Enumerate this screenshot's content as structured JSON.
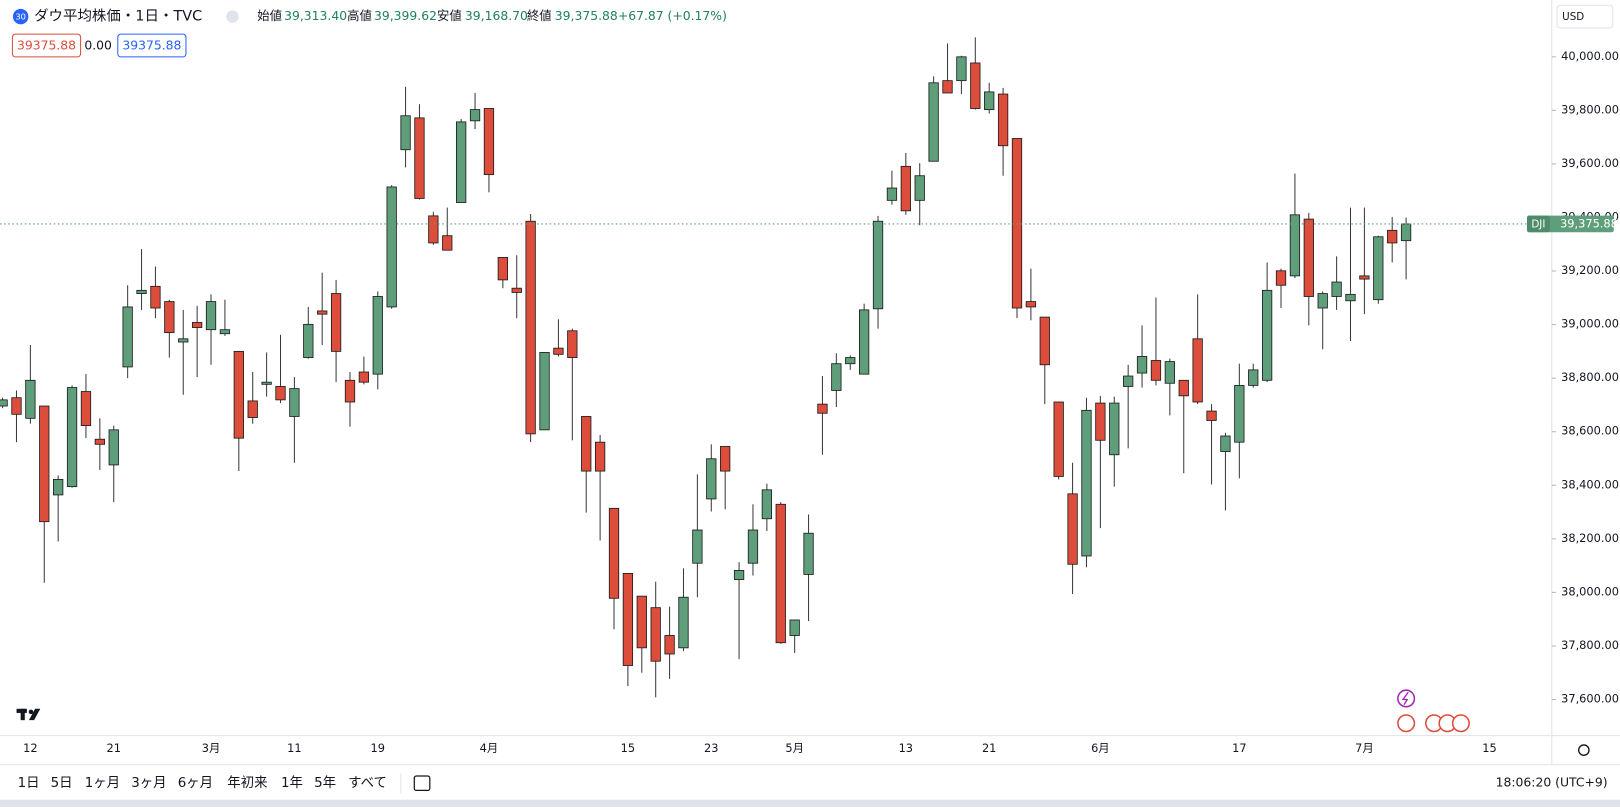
{
  "header": {
    "badge": "30",
    "title": "ダウ平均株価・1日・TVC",
    "ohlc": [
      {
        "label": "始値",
        "value": "39,313.40"
      },
      {
        "label": "高値",
        "value": "39,399.62"
      },
      {
        "label": "安値",
        "value": "39,168.70"
      },
      {
        "label": "終値",
        "value": "39,375.88"
      }
    ],
    "change": "+67.87 (+0.17%)",
    "boxes": [
      "39375.88",
      "0.00",
      "39375.88"
    ],
    "currency": "USD"
  },
  "chart_data": {
    "type": "candlestick",
    "up_color": "#5f9e7b",
    "down_color": "#dc4d3c",
    "open": [
      38696,
      38727,
      38650,
      38696,
      38364,
      38395,
      38750,
      38572,
      38476,
      38842,
      39116,
      39143,
      39086,
      38935,
      39008,
      38981,
      38966,
      38900,
      38715,
      38777,
      38769,
      38657,
      38877,
      39051,
      39116,
      38792,
      38823,
      38815,
      39066,
      39653,
      39772,
      39406,
      39332,
      39456,
      39761,
      39807,
      39251,
      39136,
      39386,
      38607,
      38912,
      38977,
      38657,
      38561,
      38314,
      38071,
      37986,
      37943,
      37839,
      37793,
      38109,
      38349,
      38545,
      38048,
      38109,
      38275,
      38329,
      37839,
      38067,
      38703,
      38754,
      38854,
      38815,
      39059,
      39464,
      39591,
      39464,
      39610,
      39911,
      39911,
      39977,
      39803,
      39861,
      39695,
      39086,
      39028,
      38711,
      38368,
      38136,
      38707,
      38514,
      38769,
      38819,
      38866,
      38781,
      38792,
      38947,
      38677,
      38526,
      38561,
      38773,
      38792,
      39201,
      39182,
      39394,
      39062,
      39105,
      39089,
      39182,
      39093,
      39352,
      39313.4
    ],
    "high": [
      38727,
      38754,
      38924,
      38696,
      38437,
      38773,
      38815,
      38650,
      38623,
      39147,
      39282,
      39217,
      39093,
      39055,
      39070,
      39113,
      39093,
      38900,
      38823,
      38896,
      38962,
      38804,
      39066,
      39194,
      39167,
      38823,
      38881,
      39124,
      39521,
      39888,
      39823,
      39421,
      39437,
      39768,
      39865,
      39807,
      39251,
      39259,
      39413,
      38896,
      39020,
      38985,
      38657,
      38588,
      38314,
      38071,
      37986,
      38040,
      37947,
      38090,
      38441,
      38553,
      38545,
      38113,
      38329,
      38406,
      38337,
      37897,
      38291,
      38808,
      38893,
      38885,
      39078,
      39406,
      39575,
      39641,
      39603,
      39927,
      40050,
      40004,
      40073,
      39903,
      39884,
      39695,
      39209,
      39028,
      38711,
      38484,
      38727,
      38734,
      38731,
      38850,
      38997,
      39101,
      38873,
      38792,
      39113,
      38703,
      38596,
      38854,
      38854,
      39232,
      39209,
      39564,
      39417,
      39124,
      39255,
      39437,
      39437,
      39332,
      39402,
      39399.62
    ],
    "low": [
      38688,
      38561,
      38630,
      38036,
      38190,
      38391,
      38576,
      38457,
      38337,
      38800,
      39055,
      39024,
      38877,
      38738,
      38804,
      38850,
      38958,
      38453,
      38630,
      38731,
      38707,
      38484,
      38873,
      38924,
      38785,
      38619,
      38777,
      38758,
      39059,
      39587,
      39467,
      39298,
      39278,
      39456,
      39730,
      39494,
      39136,
      39024,
      38561,
      38607,
      38881,
      38568,
      38298,
      38194,
      37862,
      37650,
      37700,
      37608,
      37677,
      37781,
      37982,
      38302,
      38310,
      37751,
      38063,
      38229,
      37808,
      37774,
      37893,
      38514,
      38692,
      38831,
      38815,
      38985,
      39448,
      39410,
      39371,
      39610,
      39865,
      39861,
      39803,
      39788,
      39556,
      39024,
      39016,
      38703,
      38422,
      37994,
      38094,
      38240,
      38395,
      38538,
      38765,
      38773,
      38661,
      38445,
      38703,
      38403,
      38306,
      38426,
      38765,
      38785,
      39062,
      39174,
      38997,
      38908,
      39055,
      38939,
      39039,
      39078,
      39232,
      39168.7
    ],
    "close": [
      38719,
      38665,
      38792,
      38264,
      38422,
      38765,
      38623,
      38553,
      38607,
      39066,
      39128,
      39062,
      38970,
      38947,
      38989,
      39086,
      38981,
      38576,
      38653,
      38785,
      38719,
      38761,
      39001,
      39039,
      38900,
      38711,
      38785,
      39105,
      39514,
      39780,
      39471,
      39305,
      39278,
      39757,
      39803,
      39560,
      39167,
      39120,
      38592,
      38896,
      38889,
      38877,
      38453,
      38453,
      37978,
      37727,
      37793,
      37743,
      37770,
      37982,
      38233,
      38499,
      38453,
      38082,
      38233,
      38383,
      37812,
      37897,
      38221,
      38669,
      38854,
      38877,
      39055,
      39386,
      39510,
      39425,
      39556,
      39903,
      39865,
      40000,
      39807,
      39869,
      39668,
      39062,
      39066,
      38850,
      38433,
      38105,
      38680,
      38568,
      38707,
      38808,
      38881,
      38792,
      38862,
      38734,
      38711,
      38642,
      38584,
      38773,
      38831,
      39128,
      39147,
      39410,
      39105,
      39116,
      39159,
      39113,
      39170,
      39328,
      39305,
      39375.88
    ],
    "xlim": [
      0,
      111
    ],
    "xticks": [
      {
        "value": 2,
        "label": "12"
      },
      {
        "value": 8,
        "label": "21"
      },
      {
        "value": 15,
        "label": "3月"
      },
      {
        "value": 21,
        "label": "11"
      },
      {
        "value": 27,
        "label": "19"
      },
      {
        "value": 35,
        "label": "4月"
      },
      {
        "value": 45,
        "label": "15"
      },
      {
        "value": 51,
        "label": "23"
      },
      {
        "value": 57,
        "label": "5月"
      },
      {
        "value": 65,
        "label": "13"
      },
      {
        "value": 71,
        "label": "21"
      },
      {
        "value": 79,
        "label": "6月"
      },
      {
        "value": 89,
        "label": "17"
      },
      {
        "value": 98,
        "label": "7月"
      },
      {
        "value": 107,
        "label": "15"
      }
    ],
    "ylim": [
      37465,
      40212
    ],
    "yticks": [
      {
        "value": 37600,
        "label": "37,600.00"
      },
      {
        "value": 37800,
        "label": "37,800.00"
      },
      {
        "value": 38000,
        "label": "38,000.00"
      },
      {
        "value": 38200,
        "label": "38,200.00"
      },
      {
        "value": 38400,
        "label": "38,400.00"
      },
      {
        "value": 38600,
        "label": "38,600.00"
      },
      {
        "value": 38800,
        "label": "38,800.00"
      },
      {
        "value": 39000,
        "label": "39,000.00"
      },
      {
        "value": 39200,
        "label": "39,200.00"
      },
      {
        "value": 39400,
        "label": "39,400.00"
      },
      {
        "value": 39600,
        "label": "39,600.00"
      },
      {
        "value": 39800,
        "label": "39,800.00"
      },
      {
        "value": 40000,
        "label": "40,000.00"
      }
    ],
    "grid": false,
    "price_line": {
      "symbol": "DJI",
      "value": 39375.88,
      "label": "39,375.88",
      "color": "#5f9e7b"
    }
  },
  "toolbar": {
    "ranges": [
      "1日",
      "5日",
      "1ヶ月",
      "3ヶ月",
      "6ヶ月",
      "年初来",
      "1年",
      "5年",
      "すべて"
    ],
    "time": "18:06:20 (UTC+9)"
  }
}
